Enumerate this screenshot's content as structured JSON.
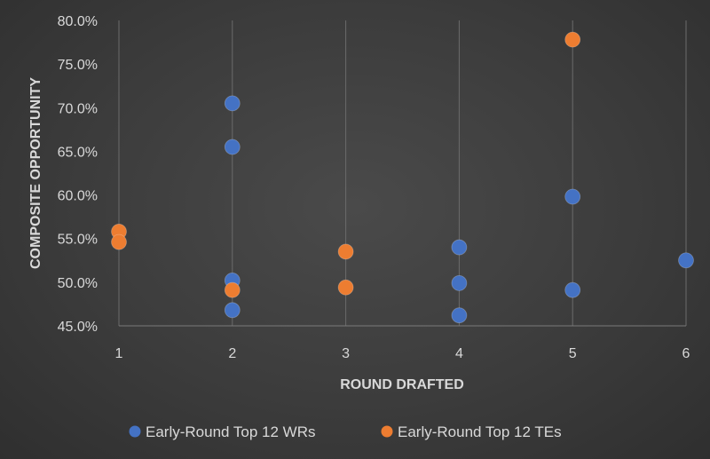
{
  "chart_data": {
    "type": "scatter",
    "xlabel": "ROUND DRAFTED",
    "ylabel": "COMPOSITE OPPORTUNITY",
    "xlim": [
      1,
      6
    ],
    "ylim": [
      45.0,
      80.0
    ],
    "x_ticks": [
      1,
      2,
      3,
      4,
      5,
      6
    ],
    "y_ticks": [
      45.0,
      50.0,
      55.0,
      60.0,
      65.0,
      70.0,
      75.0,
      80.0
    ],
    "y_tick_labels": [
      "45.0%",
      "50.0%",
      "55.0%",
      "60.0%",
      "65.0%",
      "70.0%",
      "75.0%",
      "80.0%"
    ],
    "grid": "vertical gridlines at each round",
    "legend_position": "bottom",
    "series": [
      {
        "name": "Early-Round Top 12 WRs",
        "color": "#4472c4",
        "points": [
          {
            "x": 2,
            "y": 70.5
          },
          {
            "x": 2,
            "y": 65.5
          },
          {
            "x": 2,
            "y": 50.2
          },
          {
            "x": 2,
            "y": 46.8
          },
          {
            "x": 4,
            "y": 54.0
          },
          {
            "x": 4,
            "y": 49.9
          },
          {
            "x": 4,
            "y": 46.2
          },
          {
            "x": 5,
            "y": 59.8
          },
          {
            "x": 5,
            "y": 49.1
          },
          {
            "x": 6,
            "y": 52.5
          }
        ]
      },
      {
        "name": "Early-Round Top 12 TEs",
        "color": "#ed7d31",
        "points": [
          {
            "x": 1,
            "y": 55.8
          },
          {
            "x": 1,
            "y": 54.6
          },
          {
            "x": 2,
            "y": 49.1
          },
          {
            "x": 3,
            "y": 53.5
          },
          {
            "x": 3,
            "y": 49.4
          },
          {
            "x": 5,
            "y": 77.8
          }
        ]
      }
    ]
  }
}
